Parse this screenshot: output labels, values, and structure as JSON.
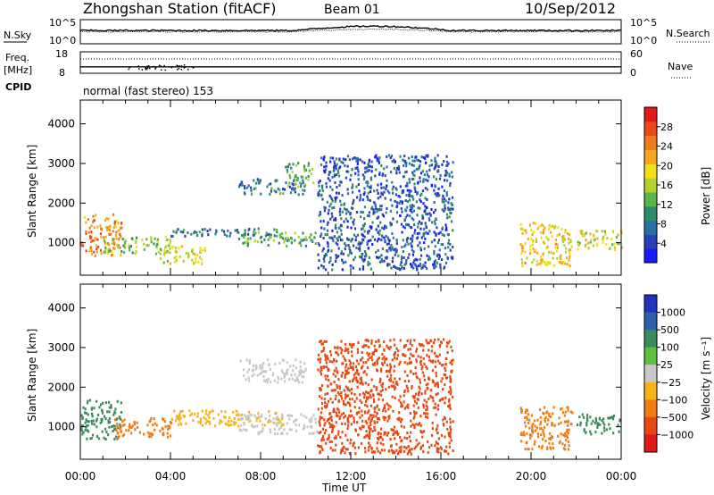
{
  "header": {
    "station": "Zhongshan Station (fitACF)",
    "beam": "Beam 01",
    "date": "10/Sep/2012"
  },
  "status_panels": {
    "nsky": {
      "label": "N.Sky",
      "left_tick_top": "10^5",
      "left_tick_bottom": "10^0"
    },
    "nsearch": {
      "label": "N.Search",
      "right_tick_top": "10^5",
      "right_tick_bottom": "10^0"
    },
    "freq": {
      "label": "Freq.",
      "unit": "[MHz]",
      "tick_top": "18",
      "tick_bottom": "8"
    },
    "nave": {
      "label": "Nave",
      "tick_top": "60",
      "tick_bottom": "0"
    },
    "cpid": {
      "label": "CPID",
      "text": "normal (fast stereo) 153"
    }
  },
  "panels": {
    "power": {
      "ylabel": "Slant Range [km]",
      "yticks": [
        "1000",
        "2000",
        "3000",
        "4000"
      ],
      "colorbar": {
        "label": "Power [dB]",
        "ticks": [
          "4",
          "8",
          "12",
          "16",
          "20",
          "24",
          "28"
        ],
        "colors": [
          "#1a1aff",
          "#2a40b8",
          "#2a6fa8",
          "#2d8c6a",
          "#5bb548",
          "#b5d22c",
          "#f3df17",
          "#f7a71f",
          "#f27a1e",
          "#ea4a1a",
          "#e01919"
        ]
      }
    },
    "velocity": {
      "ylabel": "Slant Range [km]",
      "yticks": [
        "1000",
        "2000",
        "3000",
        "4000"
      ],
      "colorbar": {
        "label": "Velocity [m s⁻¹]",
        "ticks": [
          "1000",
          "500",
          "100",
          "25",
          "−25",
          "−100",
          "−500",
          "−1000"
        ],
        "colors": [
          "#2233bb",
          "#2f5fa8",
          "#3a8c5a",
          "#5fbf3f",
          "#c8c8c8",
          "#f3b51a",
          "#f07c12",
          "#e64a12",
          "#e01919"
        ]
      }
    }
  },
  "xaxis": {
    "ticks": [
      "00:00",
      "04:00",
      "08:00",
      "12:00",
      "16:00",
      "20:00",
      "00:00"
    ],
    "label": "Time UT"
  },
  "chart_data": {
    "type": "heatmap",
    "x_range_hours": [
      0,
      24
    ],
    "y_range_km": [
      180,
      4600
    ],
    "power_scatter_bands": [
      {
        "t": [
          0.0,
          1.8
        ],
        "r": [
          650,
          1700
        ],
        "p": 22
      },
      {
        "t": [
          1.0,
          4.0
        ],
        "r": [
          700,
          1150
        ],
        "p": 14
      },
      {
        "t": [
          3.5,
          5.5
        ],
        "r": [
          450,
          900
        ],
        "p": 16
      },
      {
        "t": [
          4.0,
          9.0
        ],
        "r": [
          1150,
          1350
        ],
        "p": 8
      },
      {
        "t": [
          7.0,
          10.5
        ],
        "r": [
          900,
          1250
        ],
        "p": 12
      },
      {
        "t": [
          7.0,
          10.0
        ],
        "r": [
          2200,
          2600
        ],
        "p": 8
      },
      {
        "t": [
          9.0,
          10.3
        ],
        "r": [
          2400,
          3000
        ],
        "p": 12
      },
      {
        "t": [
          10.5,
          16.5
        ],
        "r": [
          300,
          3200
        ],
        "p": 6
      },
      {
        "t": [
          19.5,
          21.8
        ],
        "r": [
          400,
          1500
        ],
        "p": 18
      },
      {
        "t": [
          22.0,
          24.0
        ],
        "r": [
          800,
          1300
        ],
        "p": 16
      }
    ],
    "velocity_scatter_bands": [
      {
        "t": [
          0.0,
          1.8
        ],
        "r": [
          650,
          1700
        ],
        "v": 150
      },
      {
        "t": [
          1.5,
          4.0
        ],
        "r": [
          700,
          1200
        ],
        "v": -300
      },
      {
        "t": [
          4.0,
          9.0
        ],
        "r": [
          1000,
          1400
        ],
        "v": -80
      },
      {
        "t": [
          7.0,
          10.5
        ],
        "r": [
          800,
          1300
        ],
        "v": 0
      },
      {
        "t": [
          7.0,
          10.0
        ],
        "r": [
          2100,
          2700
        ],
        "v": 5
      },
      {
        "t": [
          10.5,
          16.5
        ],
        "r": [
          300,
          3200
        ],
        "v": -700
      },
      {
        "t": [
          19.5,
          21.8
        ],
        "r": [
          400,
          1500
        ],
        "v": -350
      },
      {
        "t": [
          22.0,
          24.0
        ],
        "r": [
          800,
          1300
        ],
        "v": 150
      }
    ],
    "nsky_level": 0.55,
    "freq_mhz": 11,
    "nave": 40
  }
}
